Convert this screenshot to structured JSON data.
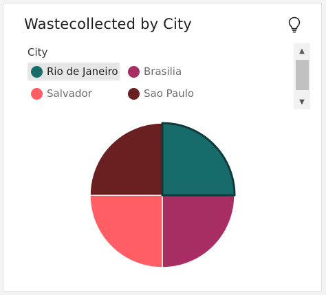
{
  "card": {
    "title": "Wastecollected by City"
  },
  "icons": {
    "insight": "lightbulb-icon",
    "scroll_up": "triangle-up-icon",
    "scroll_down": "triangle-down-icon"
  },
  "legend": {
    "title": "City",
    "selected": "Rio de Janeiro",
    "placement": "top-left",
    "items": [
      {
        "label": "Rio de Janeiro",
        "color": "#176b6a"
      },
      {
        "label": "Brasilia",
        "color": "#a82d63"
      },
      {
        "label": "Salvador",
        "color": "#ff5f64"
      },
      {
        "label": "Sao Paulo",
        "color": "#6a1f20"
      }
    ]
  },
  "chart_data": {
    "type": "pie",
    "title": "Wastecollected by City",
    "legend_title": "City",
    "categories": [
      "Rio de Janeiro",
      "Brasilia",
      "Salvador",
      "Sao Paulo"
    ],
    "values": [
      25,
      25,
      25,
      25
    ],
    "colors": [
      "#176b6a",
      "#a82d63",
      "#ff5f64",
      "#6a1f20"
    ],
    "highlighted": "Rio de Janeiro",
    "start_angle": "12 o'clock",
    "direction": "clockwise"
  }
}
